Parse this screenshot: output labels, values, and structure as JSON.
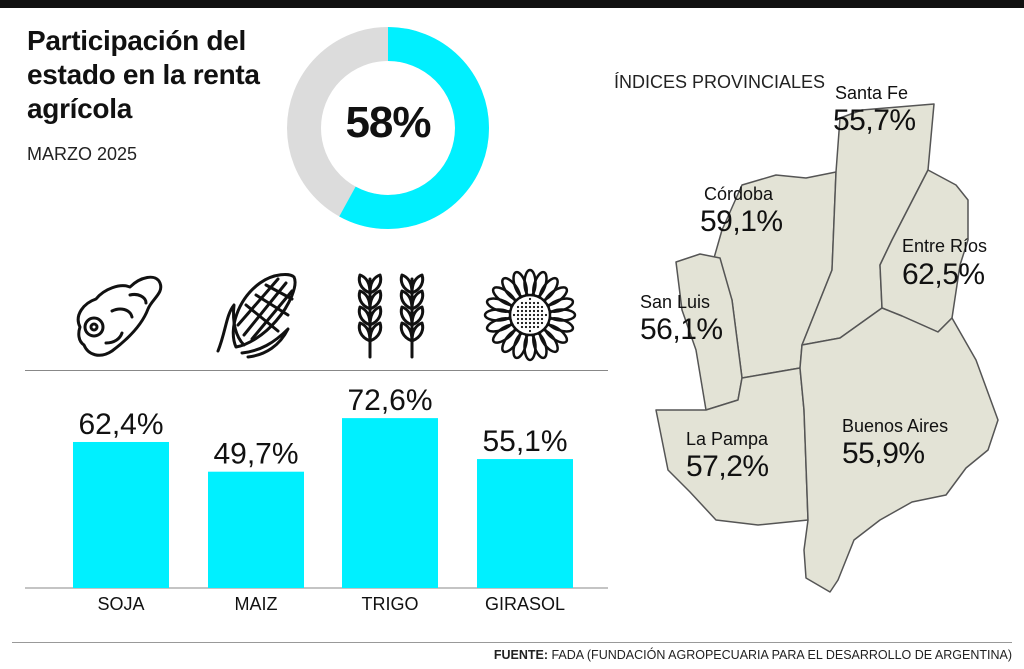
{
  "title": "Participación del estado en la renta agrícola",
  "date": "MARZO 2025",
  "donut": {
    "value": 58,
    "label": "58%",
    "color": "#00f0ff",
    "rest_color": "#dcdcdc"
  },
  "chart_data": [
    {
      "type": "pie",
      "title": "",
      "values": [
        58,
        42
      ],
      "labels": [
        "58%",
        ""
      ]
    },
    {
      "type": "bar",
      "categories": [
        "SOJA",
        "MAIZ",
        "TRIGO",
        "GIRASOL"
      ],
      "values": [
        62.4,
        49.7,
        72.6,
        55.1
      ],
      "value_labels": [
        "62,4%",
        "49,7%",
        "72,6%",
        "55,1%"
      ],
      "bar_color": "#00f0ff",
      "ylim": [
        0,
        100
      ],
      "grid": false
    },
    {
      "type": "table",
      "title": "ÍNDICES PROVINCIALES",
      "rows": [
        {
          "province": "Santa Fe",
          "value": 55.7,
          "label": "55,7%"
        },
        {
          "province": "Córdoba",
          "value": 59.1,
          "label": "59,1%"
        },
        {
          "province": "Entre Ríos",
          "value": 62.5,
          "label": "62,5%"
        },
        {
          "province": "San Luis",
          "value": 56.1,
          "label": "56,1%"
        },
        {
          "province": "La Pampa",
          "value": 57.2,
          "label": "57,2%"
        },
        {
          "province": "Buenos Aires",
          "value": 55.9,
          "label": "55,9%"
        }
      ]
    }
  ],
  "crops": [
    {
      "icon": "soybean-icon"
    },
    {
      "icon": "corn-icon"
    },
    {
      "icon": "wheat-icon"
    },
    {
      "icon": "sunflower-icon"
    }
  ],
  "map": {
    "title": "ÍNDICES PROVINCIALES",
    "fill": "#e3e3d6",
    "stroke": "#555555",
    "provinces": {
      "santa_fe": {
        "name": "Santa Fe",
        "value": "55,7%"
      },
      "cordoba": {
        "name": "Córdoba",
        "value": "59,1%"
      },
      "entre_rios": {
        "name": "Entre Ríos",
        "value": "62,5%"
      },
      "san_luis": {
        "name": "San Luis",
        "value": "56,1%"
      },
      "la_pampa": {
        "name": "La Pampa",
        "value": "57,2%"
      },
      "buenos_aires": {
        "name": "Buenos Aires",
        "value": "55,9%"
      }
    }
  },
  "footer": {
    "source_label": "FUENTE:",
    "source_text": "FADA (FUNDACIÓN AGROPECUARIA PARA EL DESARROLLO DE ARGENTINA)"
  }
}
